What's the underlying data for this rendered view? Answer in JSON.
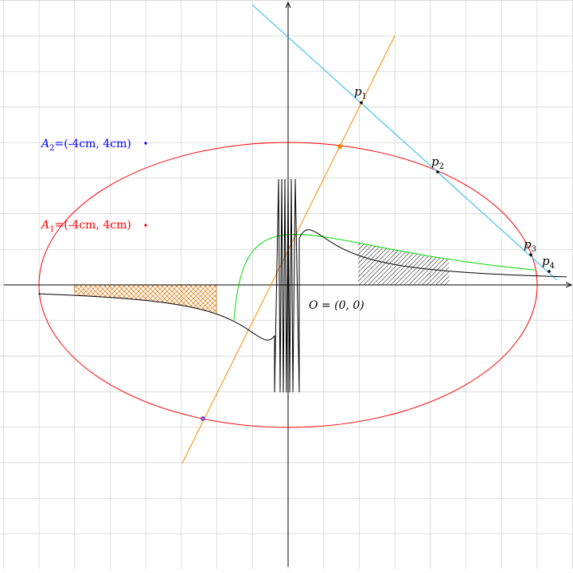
{
  "labels": {
    "a2": {
      "name": "A",
      "sub": "2",
      "rest": "=(-4cm, 4cm)",
      "color": "#0000ff"
    },
    "a1": {
      "name": "A",
      "sub": "1",
      "rest": "=(-4cm, 4cm)",
      "color": "#ff0000"
    },
    "origin": "O = (0, 0)",
    "p1": {
      "name": "p",
      "sub": "1"
    },
    "p2": {
      "name": "p",
      "sub": "2"
    },
    "p3": {
      "name": "p",
      "sub": "3"
    },
    "p4": {
      "name": "p",
      "sub": "4"
    }
  },
  "colors": {
    "ellipse": "#ff0000",
    "cyan_line": "#33bbee",
    "orange_line": "#ff8800",
    "green_curve": "#00dd00",
    "black_curve": "#000000",
    "hatch_orange": "#e07000",
    "intersection_orange": "#ff8800",
    "intersection_purple": "#8855cc"
  }
}
